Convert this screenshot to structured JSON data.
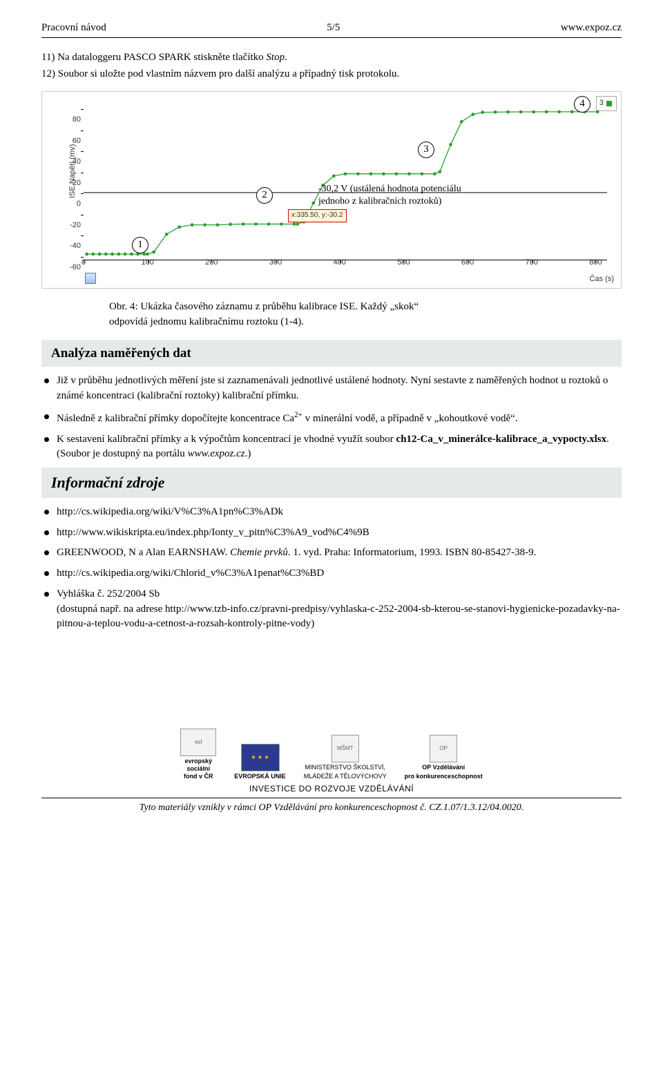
{
  "header": {
    "left": "Pracovní návod",
    "center": "5/5",
    "right": "www.expoz.cz"
  },
  "instructions": {
    "i11_pre": "11) Na dataloggeru PASCO SPARK stiskněte tlačítko ",
    "i11_italic": "Stop",
    "i11_post": ".",
    "i12": "12) Soubor si uložte pod vlastním názvem pro další analýzu a případný tisk protokolu."
  },
  "chart": {
    "type": "line",
    "y_label": "ISE Napětí (mv)",
    "x_label": "Čas (s)",
    "legend_value": "3",
    "tooltip_text": "x:335.50, y:-30.2",
    "annotation_line1": "-30,2 V (ustálená hodnota potenciálu",
    "annotation_line2": "jednoho z kalibračních roztoků)",
    "circled": {
      "1": "1",
      "2": "2",
      "3": "3",
      "4": "4"
    },
    "x_ticks": [
      0,
      100,
      200,
      300,
      400,
      500,
      600,
      700,
      800
    ],
    "y_ticks": [
      -60,
      -40,
      -20,
      0,
      20,
      40,
      60,
      80
    ],
    "xlim": [
      0,
      820
    ],
    "ylim": [
      -65,
      90
    ],
    "series_color": "#2e9e2e",
    "marker_border": "#2e9e2e",
    "marker_fill": "#2e9e2e",
    "axis_color": "#000000",
    "tooltip_border": "#d00000",
    "tooltip_bg": "#fdf6d8",
    "points": [
      [
        5,
        -59
      ],
      [
        15,
        -59
      ],
      [
        25,
        -59
      ],
      [
        35,
        -59
      ],
      [
        45,
        -59
      ],
      [
        55,
        -59
      ],
      [
        65,
        -59
      ],
      [
        75,
        -59
      ],
      [
        85,
        -59
      ],
      [
        95,
        -59
      ],
      [
        100,
        -59
      ],
      [
        110,
        -57
      ],
      [
        130,
        -40
      ],
      [
        150,
        -33
      ],
      [
        170,
        -31
      ],
      [
        190,
        -31
      ],
      [
        210,
        -31
      ],
      [
        230,
        -30.4
      ],
      [
        250,
        -30.2
      ],
      [
        270,
        -30.2
      ],
      [
        290,
        -30.2
      ],
      [
        310,
        -30.2
      ],
      [
        330,
        -30.2
      ],
      [
        335,
        -30.2
      ],
      [
        345,
        -28
      ],
      [
        360,
        -10
      ],
      [
        375,
        7
      ],
      [
        392,
        16
      ],
      [
        410,
        18
      ],
      [
        430,
        18
      ],
      [
        450,
        18
      ],
      [
        470,
        18
      ],
      [
        490,
        18
      ],
      [
        510,
        18
      ],
      [
        530,
        18
      ],
      [
        550,
        18
      ],
      [
        558,
        20
      ],
      [
        575,
        46
      ],
      [
        592,
        68
      ],
      [
        610,
        75
      ],
      [
        625,
        77
      ],
      [
        645,
        77.2
      ],
      [
        665,
        77.3
      ],
      [
        685,
        77.4
      ],
      [
        705,
        77.4
      ],
      [
        725,
        77.5
      ],
      [
        745,
        77.5
      ],
      [
        765,
        77.5
      ],
      [
        785,
        77.5
      ],
      [
        805,
        77.5
      ]
    ]
  },
  "caption": {
    "lead": "Obr. 4:",
    "rest1": "  Ukázka časového záznamu z průběhu kalibrace ISE. Každý „skok“",
    "rest2": "odpovídá jednomu kalibračnímu roztoku (1-4)."
  },
  "analysis": {
    "title": "Analýza naměřených dat",
    "b1": "Již v průběhu jednotlivých měření jste si zaznamenávali jednotlivé ustálené hodnoty. Nyní sestavte z naměřených hodnot u roztoků o známé koncentraci (kalibrační roztoky) kalibrační přímku.",
    "b2_pre": "Následně z kalibrační přímky dopočítejte koncentrace Ca",
    "b2_sup": "2+",
    "b2_post": " v minerální vodě, a případně v „kohoutkové vodě“.",
    "b3_pre": "K sestavení kalibrační přímky a k výpočtům koncentrací je vhodné využít soubor ",
    "b3_bold": "ch12-Ca_v_minerálce-kalibrace_a_vypocty.xlsx",
    "b3_mid": ". (Soubor je dostupný na portálu ",
    "b3_italic": "www.expoz.cz",
    "b3_post": ".)"
  },
  "infosources": {
    "title": "Informační zdroje",
    "b1": "http://cs.wikipedia.org/wiki/V%C3%A1pn%C3%ADk",
    "b2": "http://www.wikiskripta.eu/index.php/Ionty_v_pitn%C3%A9_vod%C4%9B",
    "b3_pre": "GREENWOOD, N a Alan EARNSHAW. ",
    "b3_it": "Chemie prvků",
    "b3_post": ". 1. vyd. Praha: Informatorium, 1993. ISBN 80-85427-38-9.",
    "b4": "http://cs.wikipedia.org/wiki/Chlorid_v%C3%A1penat%C3%BD",
    "b5a": "Vyhláška č. 252/2004 Sb",
    "b5b": "(dostupná např. na adrese http://www.tzb-info.cz/pravni-predpisy/vyhlaska-c-252-2004-sb-kterou-se-stanovi-hygienicke-pozadavky-na-pitnou-a-teplou-vodu-a-cetnost-a-rozsah-kontroly-pitne-vody)"
  },
  "footer": {
    "esf_lines": "evropský\nsociální\nfond v ČR",
    "eu": "EVROPSKÁ UNIE",
    "msmt1": "MINISTERSTVO ŠKOLSTVÍ,",
    "msmt2": "MLÁDEŽE A TĚLOVÝCHOVY",
    "op1": "OP Vzdělávání",
    "op2": "pro konkurenceschopnost",
    "invest": "INVESTICE DO ROZVOJE VZDĚLÁVÁNÍ",
    "credit_pre": "Tyto materiály vznikly v rámci OP Vzdělávání pro konkurenceschopnost č. ",
    "credit_code": "CZ.1.07/1.3.12/04.0020."
  }
}
